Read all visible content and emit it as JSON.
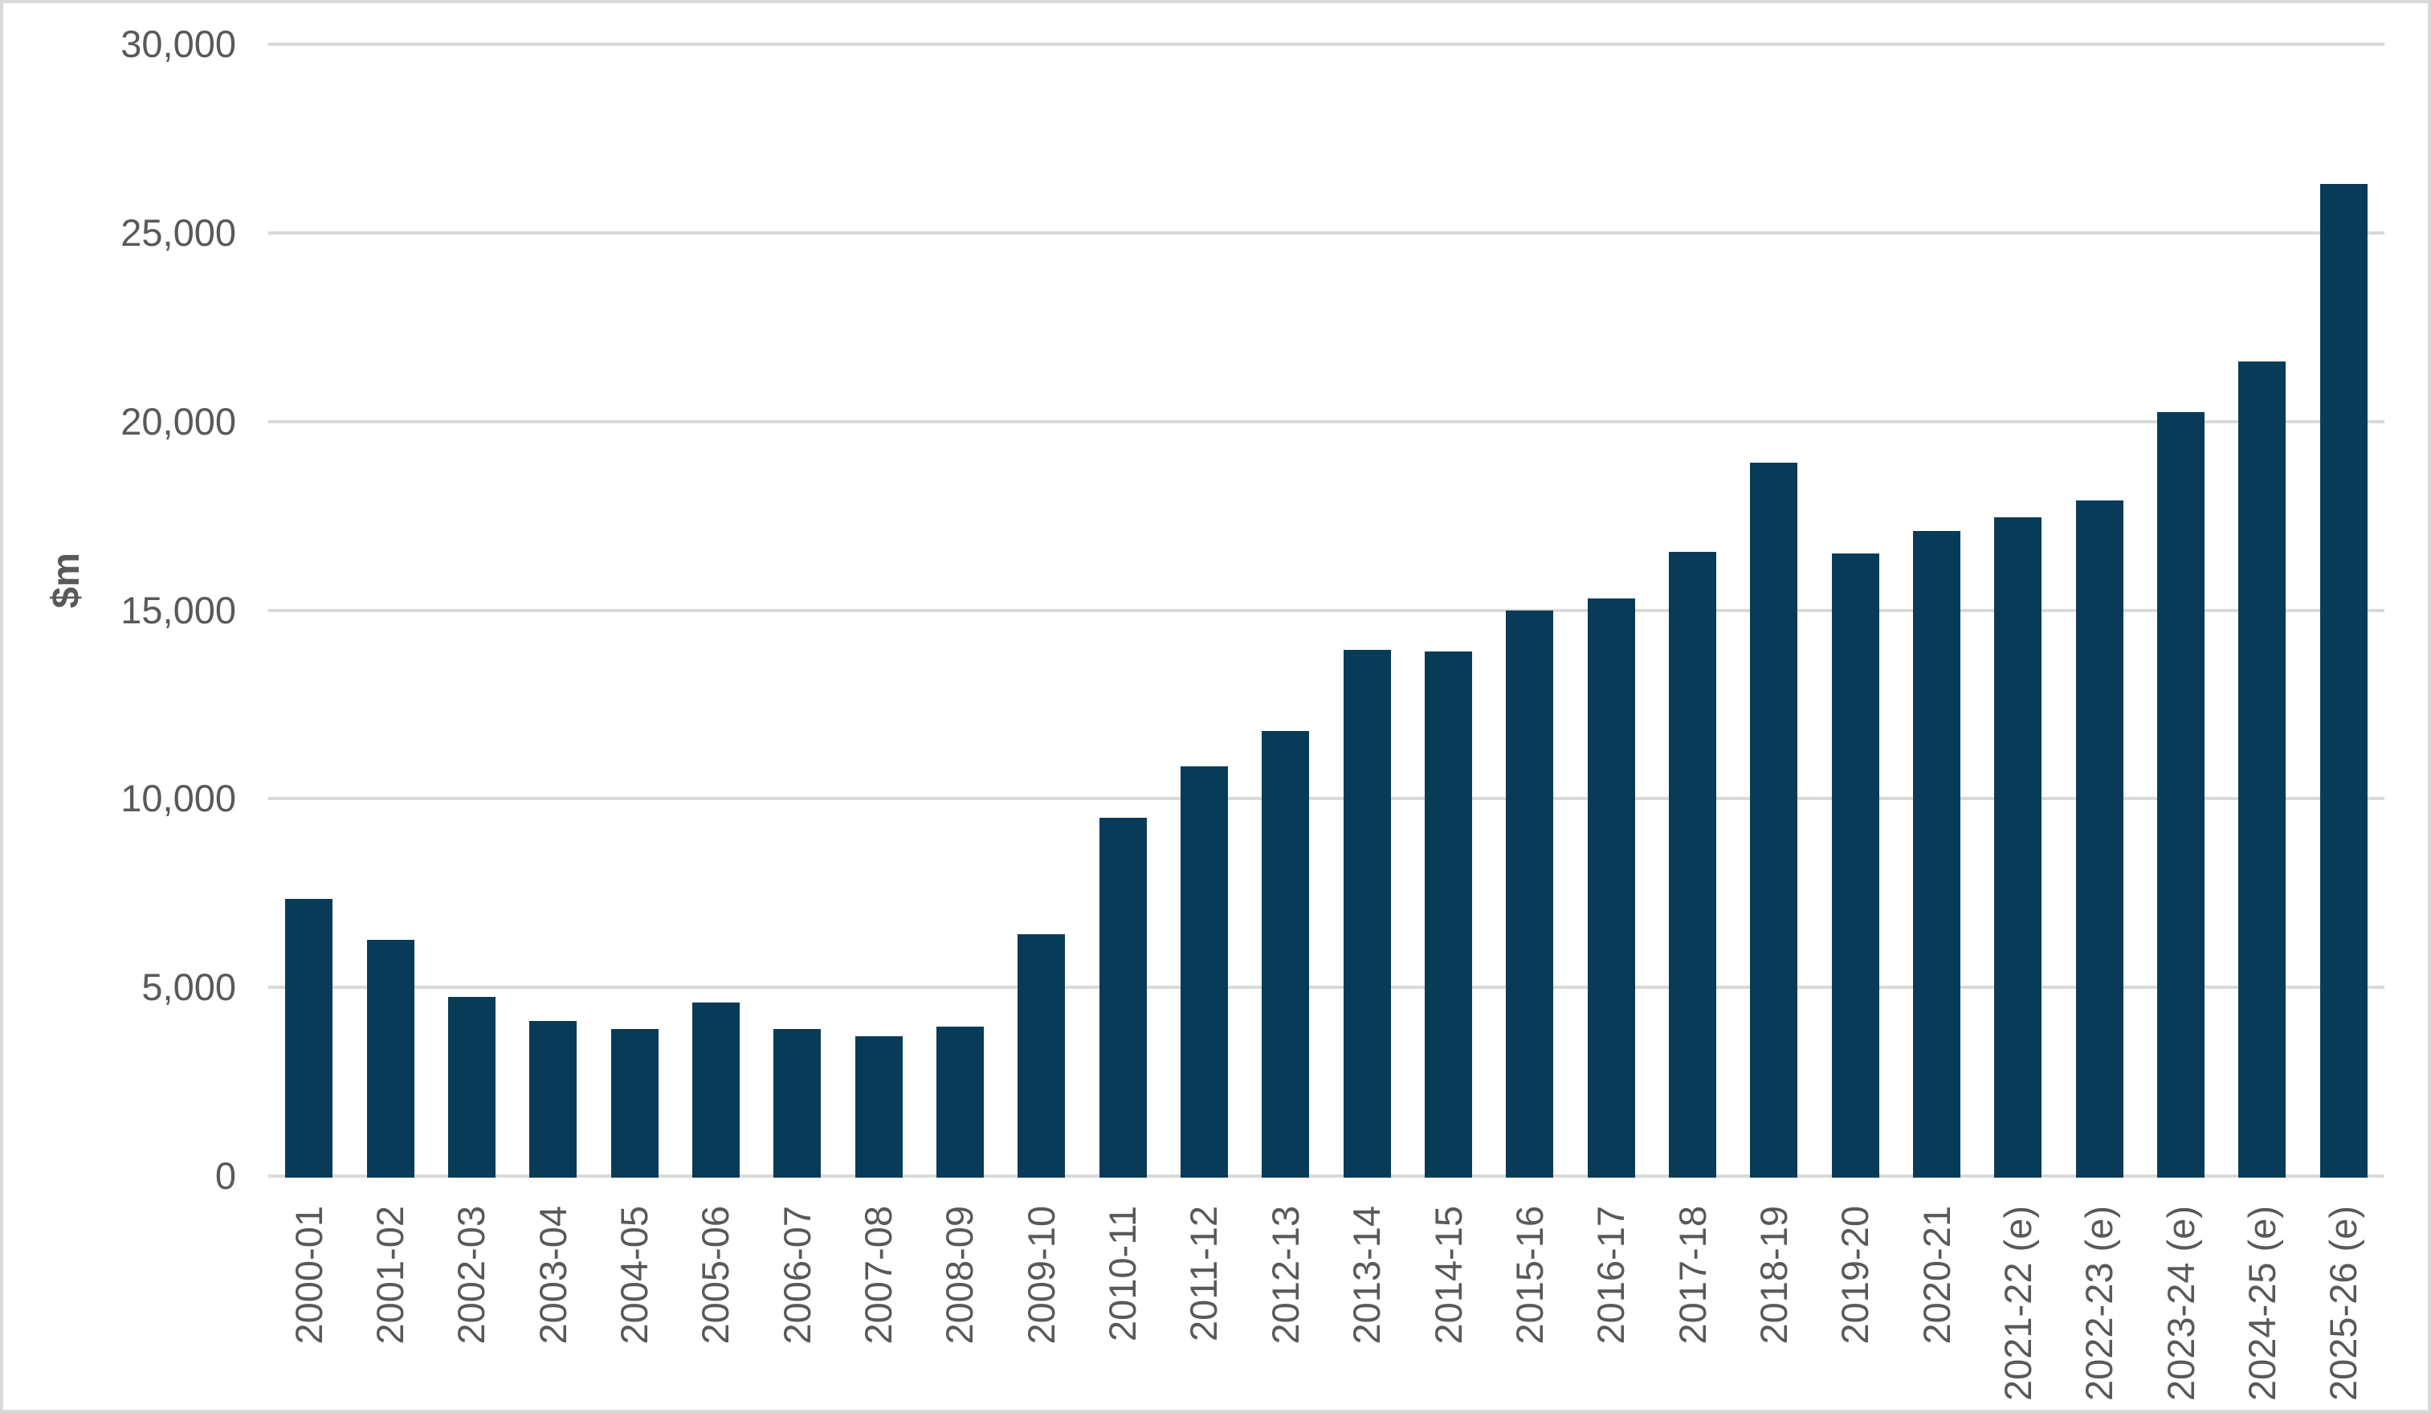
{
  "chart_data": {
    "type": "bar",
    "title": "",
    "xlabel": "",
    "ylabel": "$m",
    "categories": [
      "2000-01",
      "2001-02",
      "2002-03",
      "2003-04",
      "2004-05",
      "2005-06",
      "2006-07",
      "2007-08",
      "2008-09",
      "2009-10",
      "2010-11",
      "2011-12",
      "2012-13",
      "2013-14",
      "2014-15",
      "2015-16",
      "2016-17",
      "2017-18",
      "2018-19",
      "2019-20",
      "2020-21",
      "2021-22 (e)",
      "2022-23 (e)",
      "2023-24 (e)",
      "2024-25 (e)",
      "2025-26 (e)"
    ],
    "values": [
      7350,
      6250,
      4750,
      4100,
      3900,
      4600,
      3900,
      3700,
      3950,
      6400,
      9500,
      10850,
      11800,
      13950,
      13900,
      15000,
      15300,
      16550,
      18900,
      16500,
      17100,
      17450,
      17900,
      20250,
      21600,
      26300
    ],
    "ylim": [
      0,
      30000
    ],
    "ytick_step": 5000,
    "ytick_labels": [
      "0",
      "5,000",
      "10,000",
      "15,000",
      "20,000",
      "25,000",
      "30,000"
    ],
    "grid": true,
    "legend": "none",
    "colors": {
      "bar": "#083b58",
      "gridline": "#d9d9d9",
      "text": "#595959",
      "frame_border": "#d9d9d9",
      "background": "#ffffff"
    }
  }
}
